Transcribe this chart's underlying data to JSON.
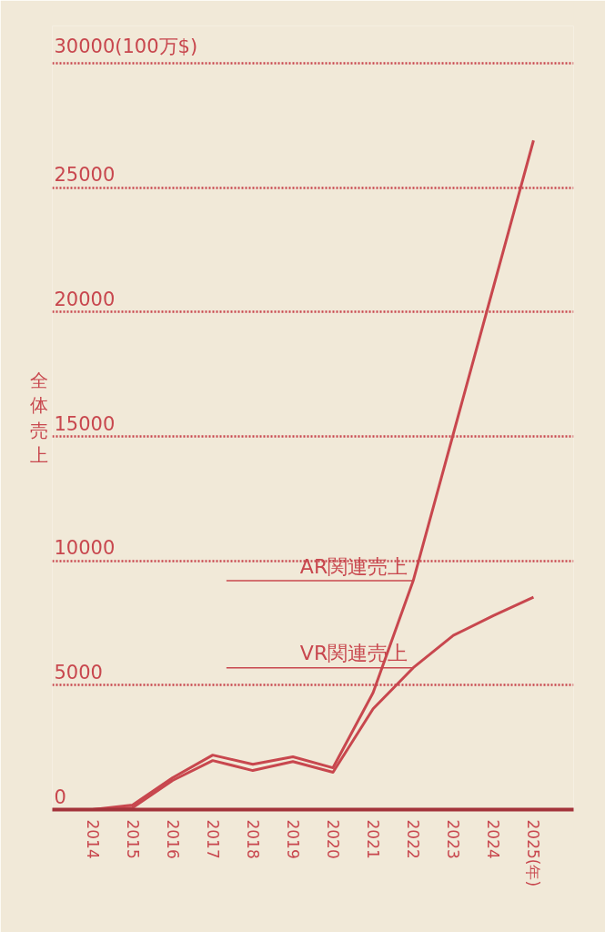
{
  "chart_data": {
    "type": "line",
    "ylabel": "全体売上",
    "x": [
      2014,
      2015,
      2016,
      2017,
      2018,
      2019,
      2020,
      2021,
      2022,
      2023,
      2024,
      2025
    ],
    "series": [
      {
        "name": "AR関連売上",
        "color": "#c8474e",
        "values": [
          0,
          180,
          1280,
          2190,
          1820,
          2120,
          1680,
          4700,
          9200,
          15100,
          21000,
          26900
        ]
      },
      {
        "name": "VR関連売上",
        "color": "#c8474e",
        "values": [
          0,
          70,
          1170,
          1970,
          1570,
          1930,
          1500,
          4050,
          5700,
          7000,
          7800,
          8540
        ]
      }
    ],
    "xlim": [
      2013,
      2026
    ],
    "xticks": [
      2014,
      2015,
      2016,
      2017,
      2018,
      2019,
      2020,
      2021,
      2022,
      2023,
      2024,
      {
        "value": 2025,
        "label": "2025(年)"
      }
    ],
    "ylim": [
      0,
      31500
    ],
    "yticks": [
      0,
      5000,
      10000,
      15000,
      20000,
      25000,
      {
        "value": 30000,
        "label": "30000(100万$)"
      }
    ],
    "grid": "y",
    "legend": false,
    "marker": "none",
    "line_style": "solid"
  }
}
